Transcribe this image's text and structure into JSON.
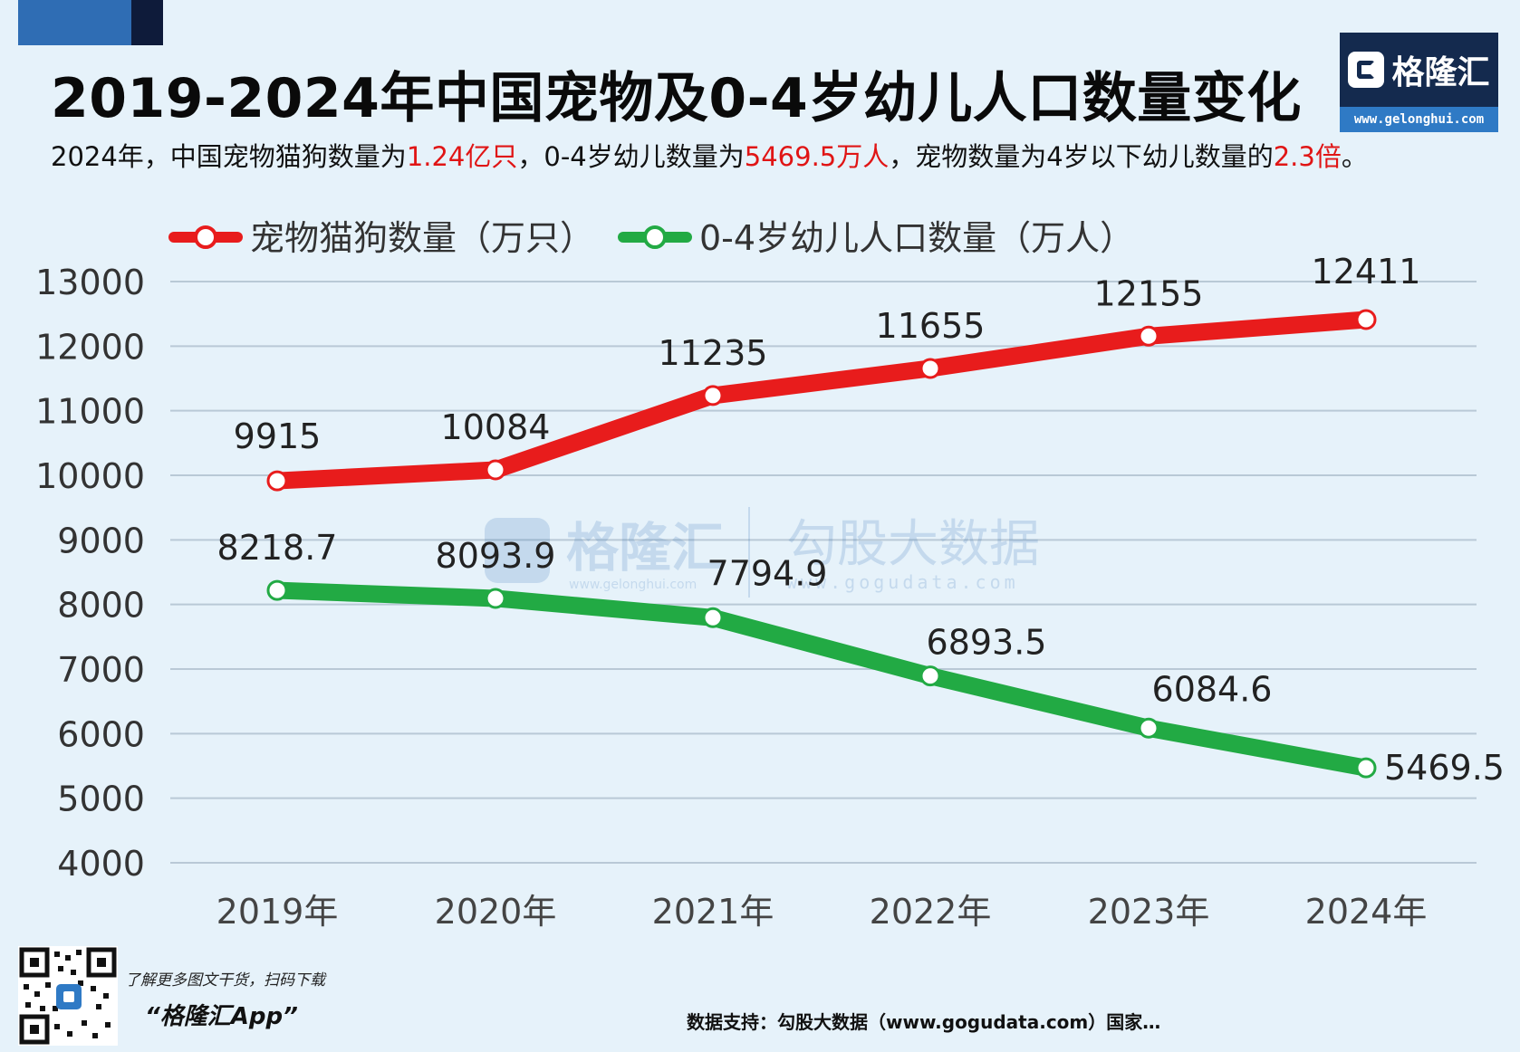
{
  "title": "2019-2024年中国宠物及0-4岁幼儿人口数量变化",
  "subtitle": {
    "p1": "2024年，中国宠物猫狗数量为",
    "h1": "1.24亿只",
    "p2": "，0-4岁幼儿数量为",
    "h2": "5469.5万人",
    "p3": "，宠物数量为4岁以下幼儿数量的",
    "h3": "2.3倍",
    "p4": "。"
  },
  "logo": {
    "name": "格隆汇",
    "url": "www.gelonghui.com"
  },
  "watermark": {
    "brand": "格隆汇",
    "brand_url": "www.gelonghui.com",
    "partner": "勾股大数据",
    "partner_url": "www.gogudata.com"
  },
  "footer": {
    "note": "了解更多图文干货，扫码下载",
    "app": "“格隆汇App”",
    "source": "数据支持：勾股大数据（www.gogudata.com）国家…"
  },
  "colors": {
    "pets": "#e81c1c",
    "children": "#22aa44",
    "accent_red": "#e01515"
  },
  "chart_data": {
    "type": "line",
    "categories": [
      "2019年",
      "2020年",
      "2021年",
      "2022年",
      "2023年",
      "2024年"
    ],
    "series": [
      {
        "name": "宠物猫狗数量（万只）",
        "values": [
          9915,
          10084,
          11235,
          11655,
          12155,
          12411
        ],
        "labels": [
          "9915",
          "10084",
          "11235",
          "11655",
          "12155",
          "12411"
        ]
      },
      {
        "name": "0-4岁幼儿人口数量（万人）",
        "values": [
          8218.7,
          8093.9,
          7794.9,
          6893.5,
          6084.6,
          5469.5
        ],
        "labels": [
          "8218.7",
          "8093.9",
          "7794.9",
          "6893.5",
          "6084.6",
          "5469.5"
        ]
      }
    ],
    "yticks": [
      4000,
      5000,
      6000,
      7000,
      8000,
      9000,
      10000,
      11000,
      12000,
      13000
    ],
    "ylim": [
      4000,
      13000
    ],
    "grid": true,
    "legend": "top-left"
  }
}
